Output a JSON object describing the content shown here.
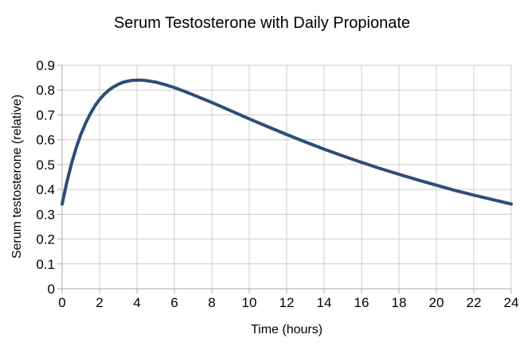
{
  "page": {
    "background": "#ffffff"
  },
  "chart_data": {
    "type": "line",
    "title": "Serum Testosterone with Daily Propionate",
    "xlabel": "Time (hours)",
    "ylabel": "Serum testosterone (relative)",
    "xlim": [
      0,
      24
    ],
    "ylim": [
      0,
      0.9
    ],
    "x_ticks": [
      0,
      2,
      4,
      6,
      8,
      10,
      12,
      14,
      16,
      18,
      20,
      22,
      24
    ],
    "y_ticks": [
      0,
      0.1,
      0.2,
      0.3,
      0.4,
      0.5,
      0.6,
      0.7,
      0.8,
      0.9
    ],
    "grid": true,
    "legend_position": "none",
    "colors": {
      "line": "#2e4d77",
      "grid": "#cccccc",
      "axis": "#ababab",
      "text": "#000000"
    },
    "series": [
      {
        "name": "Serum testosterone (relative)",
        "x": [
          0,
          0.25,
          0.5,
          0.75,
          1,
          1.25,
          1.5,
          1.75,
          2,
          2.25,
          2.5,
          2.75,
          3,
          3.25,
          3.5,
          3.75,
          4,
          4.25,
          4.5,
          4.75,
          5,
          5.5,
          6,
          6.5,
          7,
          8,
          9,
          10,
          11,
          12,
          13,
          14,
          15,
          16,
          17,
          18,
          19,
          20,
          21,
          22,
          23,
          24
        ],
        "y": [
          0.341,
          0.429,
          0.504,
          0.567,
          0.621,
          0.666,
          0.704,
          0.736,
          0.762,
          0.783,
          0.8,
          0.813,
          0.823,
          0.831,
          0.836,
          0.839,
          0.84,
          0.84,
          0.838,
          0.835,
          0.832,
          0.822,
          0.81,
          0.796,
          0.781,
          0.75,
          0.717,
          0.684,
          0.652,
          0.621,
          0.591,
          0.562,
          0.535,
          0.509,
          0.484,
          0.461,
          0.438,
          0.417,
          0.396,
          0.377,
          0.359,
          0.341
        ]
      }
    ],
    "annotations": {
      "peak_value": 0.84,
      "peak_time_hours": 4,
      "trough_value": 0.34
    }
  }
}
